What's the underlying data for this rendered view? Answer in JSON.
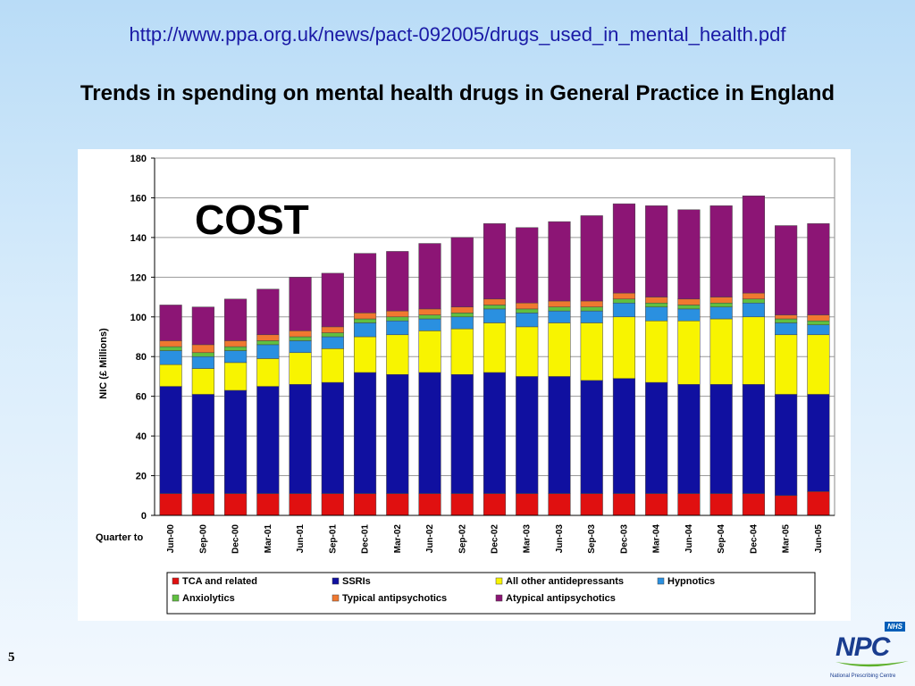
{
  "header": {
    "url": "http://www.ppa.org.uk/news/pact-092005/drugs_used_in_mental_health.pdf",
    "title": "Trends in spending on mental health drugs in General Practice in England"
  },
  "footer": {
    "page_number": "5",
    "logo": {
      "nhs_label": "NHS",
      "name": "NPC",
      "subtitle": "National Prescribing Centre"
    }
  },
  "chart_data": {
    "type": "bar",
    "stacked": true,
    "annotation": "COST",
    "ylabel": "NIC (£ Millions)",
    "xlabel": "Quarter to",
    "ylim": [
      0,
      180
    ],
    "yticks": [
      0,
      20,
      40,
      60,
      80,
      100,
      120,
      140,
      160,
      180
    ],
    "grid": true,
    "legend_position": "bottom",
    "categories": [
      "Jun-00",
      "Sep-00",
      "Dec-00",
      "Mar-01",
      "Jun-01",
      "Sep-01",
      "Dec-01",
      "Mar-02",
      "Jun-02",
      "Sep-02",
      "Dec-02",
      "Mar-03",
      "Jun-03",
      "Sep-03",
      "Dec-03",
      "Mar-04",
      "Jun-04",
      "Sep-04",
      "Dec-04",
      "Mar-05",
      "Jun-05"
    ],
    "series": [
      {
        "name": "TCA and related",
        "color": "#e01010",
        "values": [
          11,
          11,
          11,
          11,
          11,
          11,
          11,
          11,
          11,
          11,
          11,
          11,
          11,
          11,
          11,
          11,
          11,
          11,
          11,
          10,
          12
        ]
      },
      {
        "name": "SSRIs",
        "color": "#1010a0",
        "values": [
          54,
          50,
          52,
          54,
          55,
          56,
          61,
          60,
          61,
          60,
          61,
          59,
          59,
          57,
          58,
          56,
          55,
          55,
          55,
          51,
          49
        ]
      },
      {
        "name": "All other antidepressants",
        "color": "#f8f400",
        "values": [
          11,
          13,
          14,
          14,
          16,
          17,
          18,
          20,
          21,
          23,
          25,
          25,
          27,
          29,
          31,
          31,
          32,
          33,
          34,
          30,
          30
        ]
      },
      {
        "name": "Hypnotics",
        "color": "#2a90e0",
        "values": [
          7,
          6,
          6,
          7,
          6,
          6,
          7,
          7,
          6,
          6,
          7,
          7,
          6,
          6,
          7,
          7,
          6,
          6,
          7,
          6,
          5
        ]
      },
      {
        "name": "Anxiolytics",
        "color": "#60c040",
        "values": [
          2,
          2,
          2,
          2,
          2,
          2,
          2,
          2,
          2,
          2,
          2,
          2,
          2,
          2,
          2,
          2,
          2,
          2,
          2,
          2,
          2
        ]
      },
      {
        "name": "Typical antipsychotics",
        "color": "#f07830",
        "values": [
          3,
          4,
          3,
          3,
          3,
          3,
          3,
          3,
          3,
          3,
          3,
          3,
          3,
          3,
          3,
          3,
          3,
          3,
          3,
          2,
          3
        ]
      },
      {
        "name": "Atypical antipsychotics",
        "color": "#8c1575",
        "values": [
          18,
          19,
          21,
          23,
          27,
          27,
          30,
          30,
          33,
          35,
          38,
          38,
          40,
          43,
          45,
          46,
          45,
          46,
          49,
          45,
          46
        ]
      }
    ]
  }
}
